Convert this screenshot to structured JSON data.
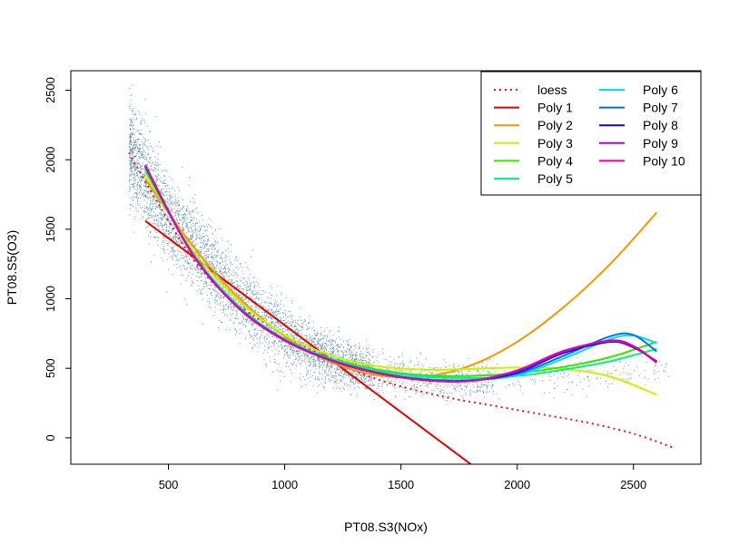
{
  "chart_data": {
    "type": "scatter",
    "title": "",
    "xlabel": "PT08.S3(NOx)",
    "ylabel": "PT08.S5(O3)",
    "xlim": [
      80,
      2790
    ],
    "ylim": [
      -190,
      2640
    ],
    "xticks": [
      500,
      1000,
      1500,
      2000,
      2500
    ],
    "yticks": [
      0,
      500,
      1000,
      1500,
      2000,
      2500
    ],
    "grid": false,
    "legend": {
      "position": "top-right",
      "columns": 2
    },
    "scatter": {
      "color": "#2E6E8E",
      "note_shape": "points follow a decreasing curve ~ loess trend",
      "count": 5200,
      "anchors": [
        [
          330,
          2080
        ],
        [
          500,
          1560
        ],
        [
          600,
          1380
        ],
        [
          700,
          1190
        ],
        [
          800,
          1020
        ],
        [
          900,
          870
        ],
        [
          1000,
          745
        ],
        [
          1100,
          640
        ],
        [
          1200,
          565
        ],
        [
          1300,
          510
        ],
        [
          1400,
          470
        ],
        [
          1500,
          440
        ],
        [
          1700,
          420
        ],
        [
          2000,
          420
        ],
        [
          2300,
          450
        ],
        [
          2600,
          500
        ]
      ],
      "spread": [
        [
          330,
          330
        ],
        [
          600,
          260
        ],
        [
          900,
          210
        ],
        [
          1200,
          160
        ],
        [
          1500,
          120
        ],
        [
          2000,
          110
        ],
        [
          2600,
          110
        ]
      ]
    },
    "series": [
      {
        "name": "loess",
        "color": "#E8141E",
        "dash": true,
        "x": [
          330,
          450,
          600,
          750,
          900,
          1050,
          1200,
          1350,
          1500,
          1700,
          1900,
          2100,
          2300,
          2500,
          2670
        ],
        "y": [
          2050,
          1700,
          1300,
          1020,
          840,
          690,
          560,
          450,
          370,
          290,
          230,
          170,
          110,
          30,
          -70
        ]
      },
      {
        "name": "Poly 1",
        "color": "#E60000",
        "x": [
          400,
          1800
        ],
        "y": [
          1560,
          -190
        ]
      },
      {
        "name": "Poly 2",
        "color": "#F29A00",
        "x": [
          400,
          600,
          800,
          1000,
          1200,
          1400,
          1600,
          1800,
          2000,
          2200,
          2400,
          2600
        ],
        "y": [
          1860,
          1390,
          1010,
          730,
          545,
          450,
          440,
          520,
          690,
          940,
          1250,
          1620
        ]
      },
      {
        "name": "Poly 3",
        "color": "#CCF200",
        "x": [
          400,
          600,
          800,
          1000,
          1200,
          1400,
          1600,
          1800,
          2000,
          2200,
          2400,
          2600
        ],
        "y": [
          1900,
          1360,
          990,
          740,
          590,
          515,
          490,
          495,
          505,
          495,
          440,
          310
        ]
      },
      {
        "name": "Poly 4",
        "color": "#3DE000",
        "x": [
          400,
          600,
          800,
          1000,
          1200,
          1400,
          1600,
          1800,
          2000,
          2200,
          2400,
          2600
        ],
        "y": [
          1930,
          1340,
          950,
          710,
          570,
          490,
          450,
          445,
          465,
          510,
          580,
          690
        ]
      },
      {
        "name": "Poly 5",
        "color": "#00F280",
        "x": [
          400,
          600,
          800,
          1000,
          1200,
          1400,
          1600,
          1800,
          2000,
          2200,
          2400,
          2600
        ],
        "y": [
          1950,
          1330,
          940,
          705,
          565,
          480,
          440,
          430,
          445,
          490,
          550,
          640
        ]
      },
      {
        "name": "Poly 6",
        "color": "#00E0F0",
        "x": [
          400,
          600,
          800,
          1000,
          1200,
          1400,
          1600,
          1800,
          2000,
          2200,
          2400,
          2500,
          2600
        ],
        "y": [
          1940,
          1340,
          945,
          710,
          565,
          470,
          425,
          415,
          450,
          570,
          710,
          735,
          680
        ]
      },
      {
        "name": "Poly 7",
        "color": "#0070F0",
        "x": [
          400,
          600,
          800,
          1000,
          1200,
          1400,
          1600,
          1800,
          2000,
          2200,
          2400,
          2500,
          2600
        ],
        "y": [
          1950,
          1330,
          940,
          705,
          560,
          470,
          420,
          415,
          460,
          590,
          730,
          740,
          620
        ]
      },
      {
        "name": "Poly 8",
        "color": "#1400F0",
        "x": [
          400,
          600,
          800,
          1000,
          1200,
          1400,
          1600,
          1800,
          2000,
          2200,
          2400,
          2500,
          2600
        ],
        "y": [
          1960,
          1330,
          935,
          700,
          555,
          465,
          415,
          410,
          470,
          610,
          690,
          650,
          550
        ]
      },
      {
        "name": "Poly 9",
        "color": "#B000E8",
        "x": [
          400,
          600,
          800,
          1000,
          1200,
          1400,
          1600,
          1800,
          2000,
          2200,
          2400,
          2500,
          2600
        ],
        "y": [
          1960,
          1330,
          935,
          700,
          555,
          465,
          415,
          410,
          480,
          620,
          700,
          660,
          545
        ]
      },
      {
        "name": "Poly 10",
        "color": "#E8009A",
        "x": [
          400,
          600,
          800,
          1000,
          1200,
          1400,
          1600,
          1800,
          2000,
          2200,
          2400,
          2500,
          2600
        ],
        "y": [
          1960,
          1330,
          935,
          700,
          555,
          465,
          415,
          410,
          485,
          625,
          695,
          655,
          540
        ]
      }
    ]
  }
}
